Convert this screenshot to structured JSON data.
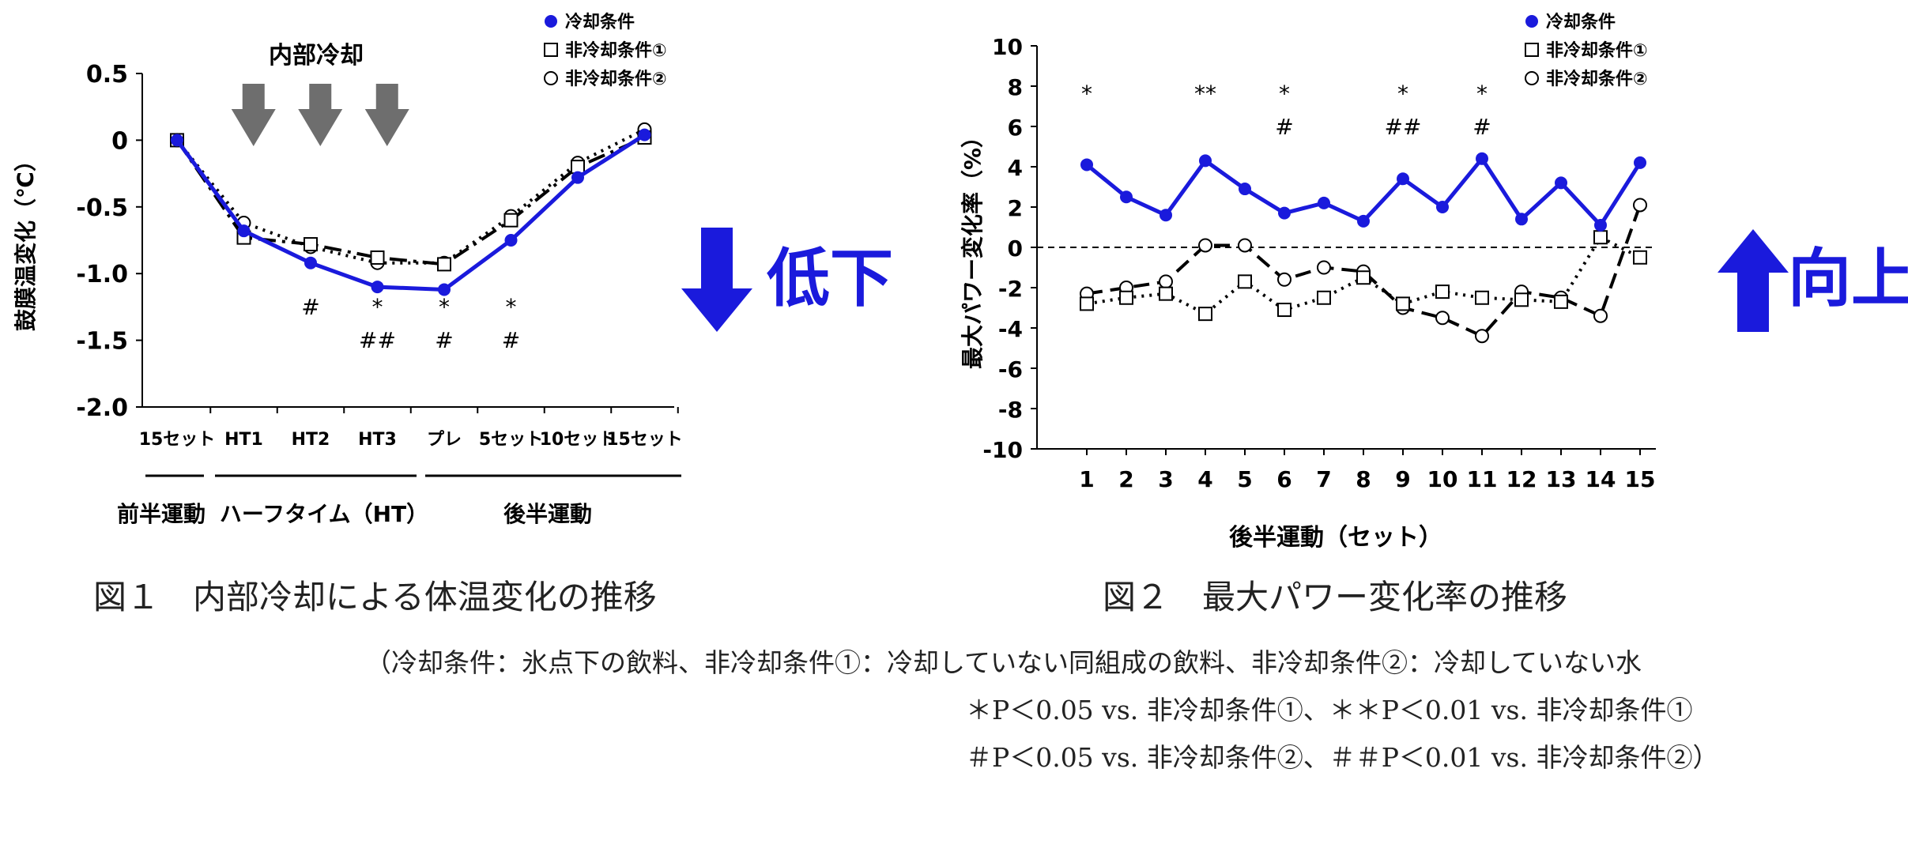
{
  "chart_data": [
    {
      "type": "line",
      "ylabel": "鼓膜温変化（℃）",
      "ylim": [
        -2.0,
        0.5
      ],
      "yticks": [
        "0.5",
        "0",
        "-0.5",
        "-1.0",
        "-1.5",
        "-2.0"
      ],
      "categories": [
        "15セット",
        "HT1",
        "HT2",
        "HT3",
        "プレ",
        "5セット",
        "10セット",
        "15セット"
      ],
      "phases": [
        "前半運動",
        "ハーフタイム（HT）",
        "後半運動"
      ],
      "cooling_label": "内部冷却",
      "legend": [
        "冷却条件",
        "非冷却条件①",
        "非冷却条件②"
      ],
      "series": [
        {
          "name": "冷却条件",
          "color": "#1a1adc",
          "style": "solid",
          "marker": "filled-circle",
          "values": [
            0,
            -0.68,
            -0.92,
            -1.1,
            -1.12,
            -0.75,
            -0.28,
            0.04
          ]
        },
        {
          "name": "非冷却条件①",
          "color": "#000000",
          "style": "dash-dot",
          "marker": "square",
          "values": [
            0,
            -0.73,
            -0.78,
            -0.88,
            -0.93,
            -0.6,
            -0.2,
            0.02
          ]
        },
        {
          "name": "非冷却条件②",
          "color": "#000000",
          "style": "dotted",
          "marker": "open-circle",
          "values": [
            0,
            -0.62,
            -0.8,
            -0.92,
            -0.92,
            -0.57,
            -0.17,
            0.08
          ]
        }
      ],
      "annotations": [
        {
          "category_index": 2,
          "lines": [
            "#"
          ]
        },
        {
          "category_index": 3,
          "lines": [
            "*",
            "##"
          ]
        },
        {
          "category_index": 4,
          "lines": [
            "*",
            "#"
          ]
        },
        {
          "category_index": 5,
          "lines": [
            "*",
            "#"
          ]
        }
      ],
      "side_label": "低下",
      "side_color": "#1a1adc"
    },
    {
      "type": "line",
      "xlabel": "後半運動（セット）",
      "ylabel": "最大パワー変化率（%）",
      "ylim": [
        -10,
        10
      ],
      "yticks": [
        "10",
        "8",
        "6",
        "4",
        "2",
        "0",
        "-2",
        "-4",
        "-6",
        "-8",
        "-10"
      ],
      "categories": [
        "1",
        "2",
        "3",
        "4",
        "5",
        "6",
        "7",
        "8",
        "9",
        "10",
        "11",
        "12",
        "13",
        "14",
        "15"
      ],
      "legend": [
        "冷却条件",
        "非冷却条件①",
        "非冷却条件②"
      ],
      "series": [
        {
          "name": "冷却条件",
          "color": "#1a1adc",
          "style": "solid",
          "marker": "filled-circle",
          "values": [
            4.1,
            2.5,
            1.6,
            4.3,
            2.9,
            1.7,
            2.2,
            1.3,
            3.4,
            2.0,
            4.4,
            1.4,
            3.2,
            1.1,
            4.2
          ]
        },
        {
          "name": "非冷却条件①",
          "color": "#000000",
          "style": "dotted",
          "marker": "square",
          "values": [
            -2.8,
            -2.5,
            -2.3,
            -3.3,
            -1.7,
            -3.1,
            -2.5,
            -1.5,
            -2.8,
            -2.2,
            -2.5,
            -2.6,
            -2.7,
            0.5,
            -0.5
          ]
        },
        {
          "name": "非冷却条件②",
          "color": "#000000",
          "style": "dashed",
          "marker": "open-circle",
          "values": [
            -2.3,
            -2.0,
            -1.7,
            0.1,
            0.1,
            -1.6,
            -1.0,
            -1.2,
            -3.0,
            -3.5,
            -4.4,
            -2.2,
            -2.5,
            -3.4,
            2.1
          ]
        }
      ],
      "annotations": [
        {
          "category_index": 0,
          "lines": [
            "*"
          ]
        },
        {
          "category_index": 3,
          "lines": [
            "**"
          ]
        },
        {
          "category_index": 5,
          "lines": [
            "*",
            "#"
          ]
        },
        {
          "category_index": 8,
          "lines": [
            "*",
            "##"
          ]
        },
        {
          "category_index": 10,
          "lines": [
            "*",
            "#"
          ]
        }
      ],
      "side_label": "向上",
      "side_color": "#1a1adc"
    }
  ],
  "captions": {
    "fig1": "図１　内部冷却による体温変化の推移",
    "fig2": "図２　最大パワー変化率の推移"
  },
  "footnotes": [
    "（冷却条件：氷点下の飲料、非冷却条件①：冷却していない同組成の飲料、非冷却条件②：冷却していない水",
    "＊P＜0.05 vs. 非冷却条件①、＊＊P＜0.01 vs. 非冷却条件①",
    "＃P＜0.05 vs. 非冷却条件②、＃＃P＜0.01 vs. 非冷却条件②）"
  ]
}
